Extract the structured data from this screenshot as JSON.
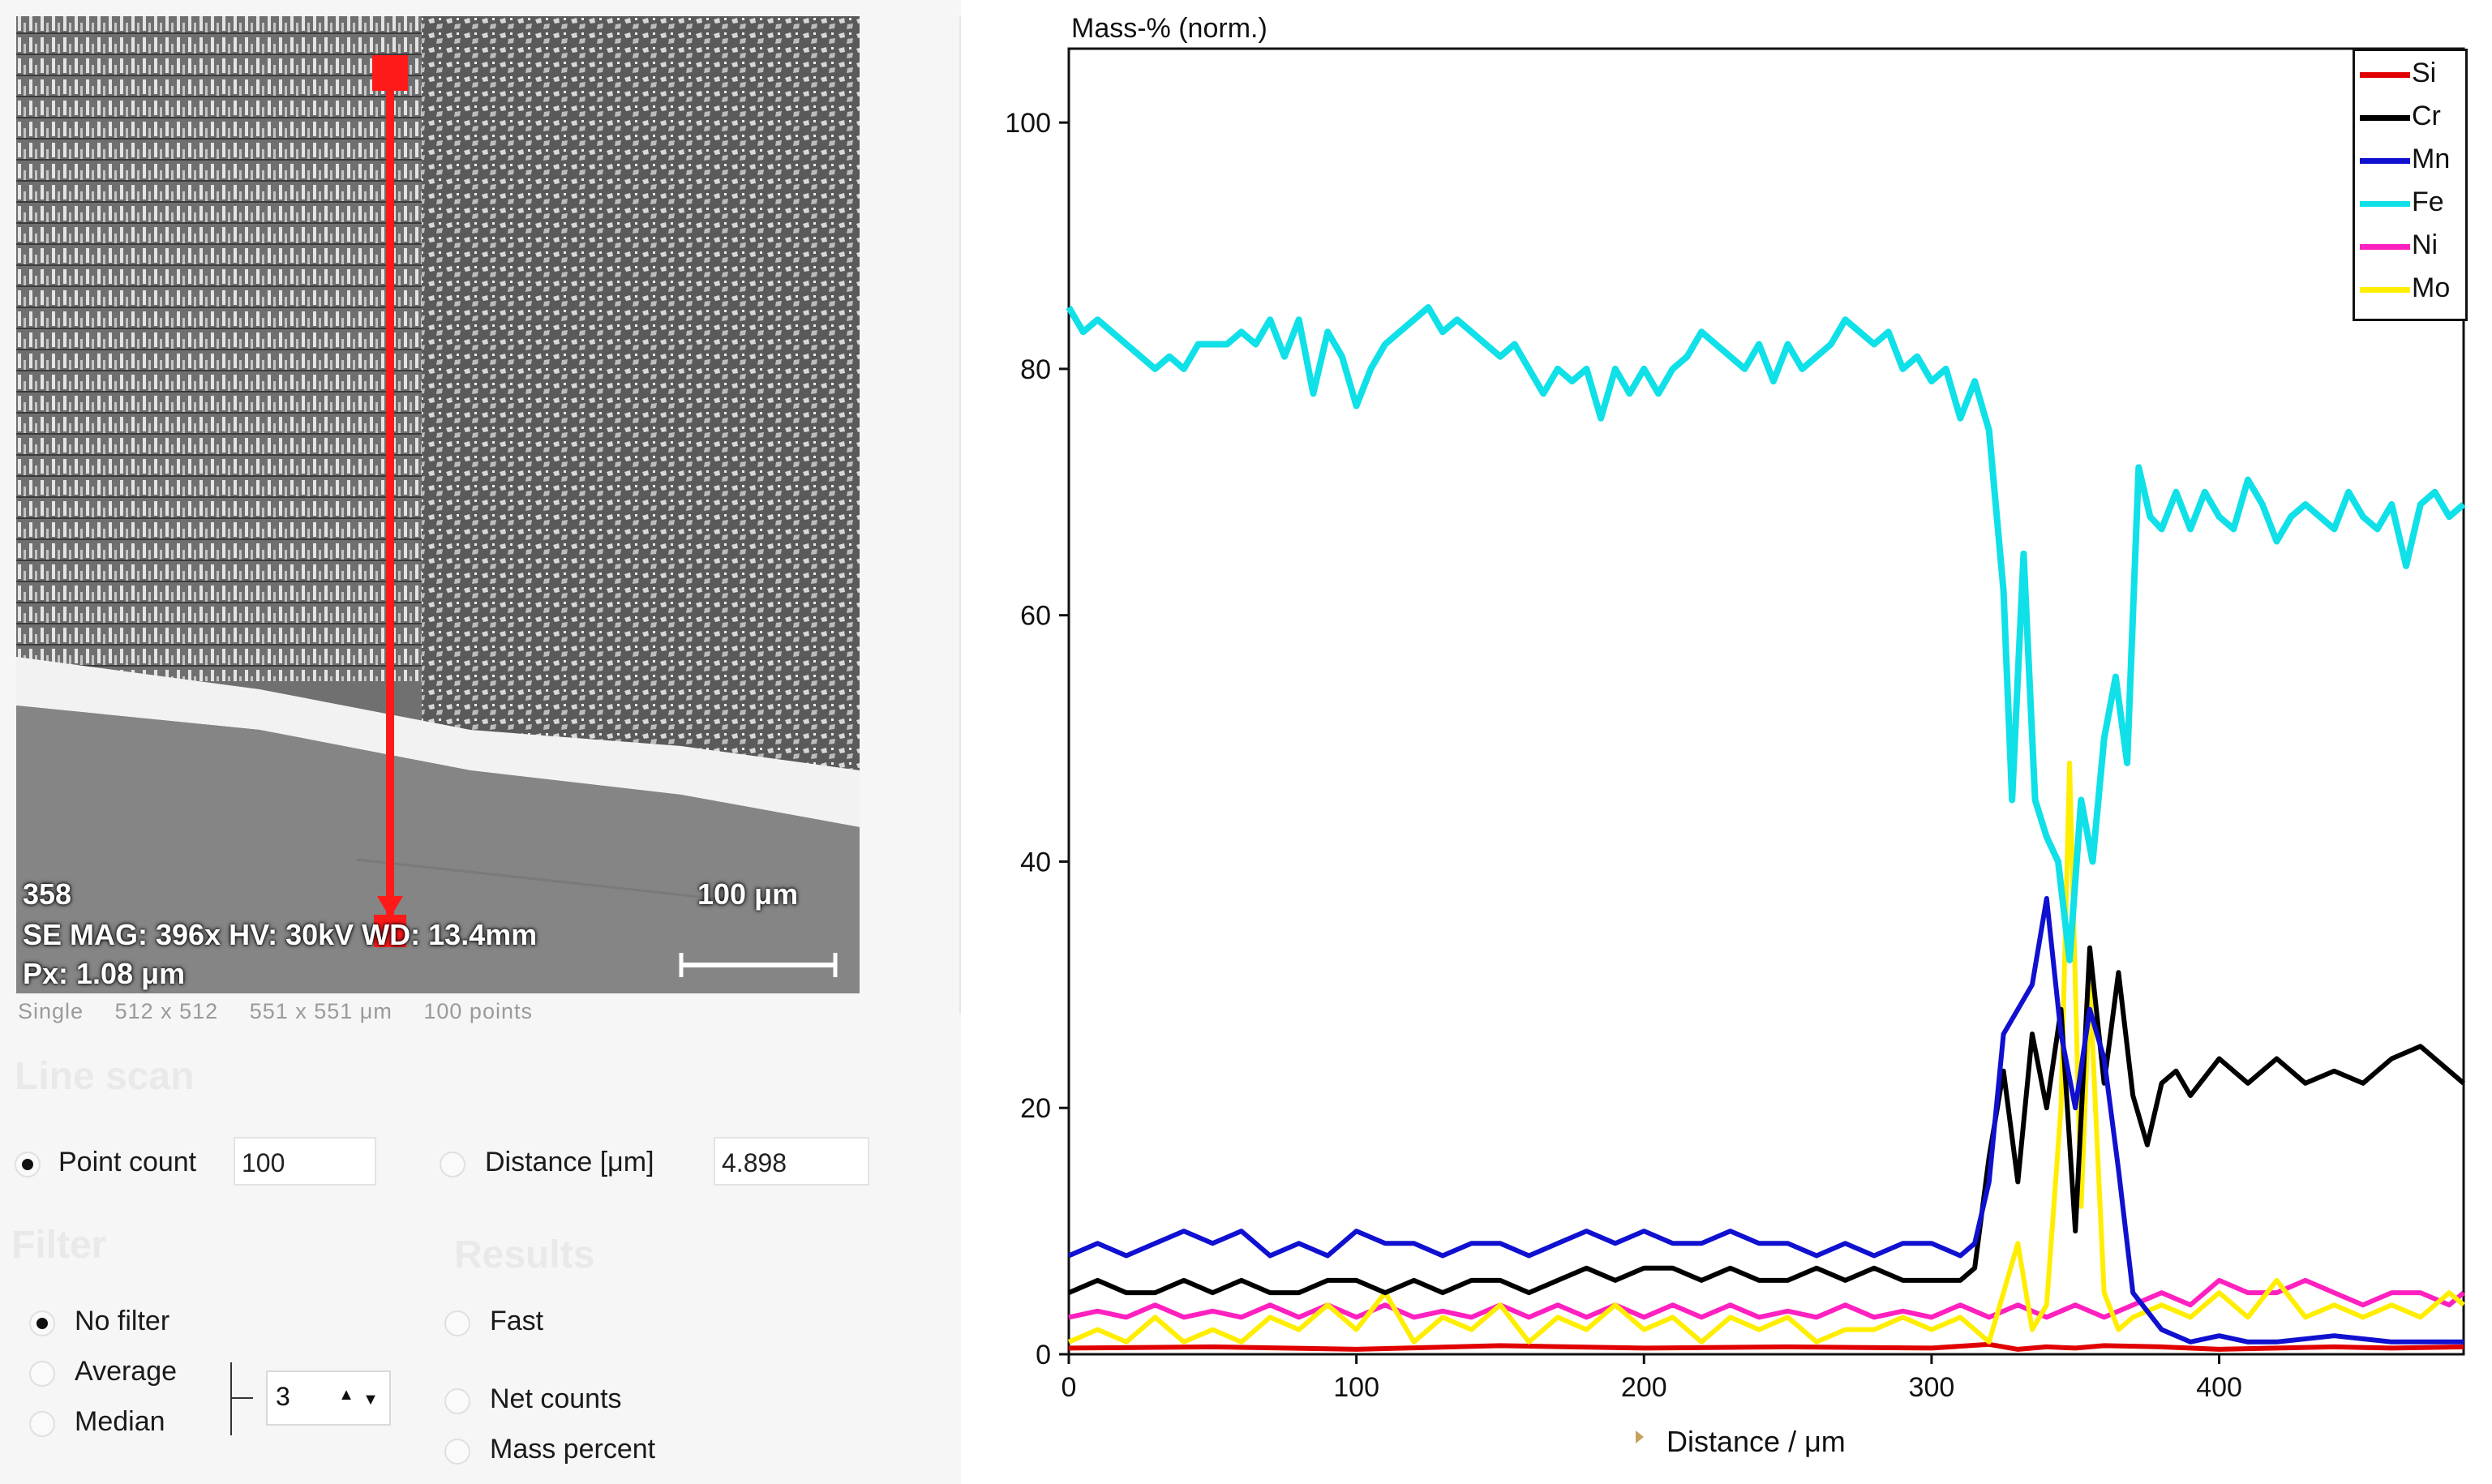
{
  "image": {
    "frame_number": "358",
    "info_line": "SE  MAG: 396x HV: 30kV WD: 13.4mm",
    "pixel_size": "Px: 1.08 μm",
    "scale_bar_label": "100 μm"
  },
  "scan_info": {
    "mode": "Single",
    "resolution": "512 x 512",
    "field_size": "551 x 551 μm",
    "points": "100 points"
  },
  "line_scan": {
    "title": "Line scan",
    "point_count_label": "Point count",
    "point_count_value": "100",
    "distance_label": "Distance [μm]",
    "distance_value": "4.898"
  },
  "filter": {
    "title": "Filter",
    "options": [
      "No filter",
      "Average",
      "Median"
    ],
    "selected": "No filter",
    "width_value": "3"
  },
  "results": {
    "title": "Results",
    "options": [
      "Fast",
      "Net counts",
      "Mass percent"
    ]
  },
  "chart_data": {
    "type": "line",
    "title": "Mass-% (norm.)",
    "xlabel": "Distance / μm",
    "ylabel": "Mass-% (norm.)",
    "xlim": [
      0,
      485
    ],
    "ylim": [
      0,
      106
    ],
    "xticks": [
      0,
      100,
      200,
      300,
      400
    ],
    "yticks": [
      0,
      20,
      40,
      60,
      80,
      100
    ],
    "legend_position": "top-right",
    "series": [
      {
        "name": "Si",
        "color": "#e00000",
        "x": [
          0,
          50,
          100,
          150,
          200,
          250,
          300,
          320,
          330,
          340,
          350,
          360,
          380,
          400,
          420,
          440,
          460,
          485
        ],
        "values": [
          0.5,
          0.6,
          0.4,
          0.7,
          0.5,
          0.6,
          0.5,
          0.8,
          0.4,
          0.6,
          0.5,
          0.7,
          0.6,
          0.4,
          0.5,
          0.6,
          0.5,
          0.6
        ]
      },
      {
        "name": "Cr",
        "color": "#000000",
        "x": [
          0,
          10,
          20,
          30,
          40,
          50,
          60,
          70,
          80,
          90,
          100,
          110,
          120,
          130,
          140,
          150,
          160,
          170,
          180,
          190,
          200,
          210,
          220,
          230,
          240,
          250,
          260,
          270,
          280,
          290,
          300,
          310,
          315,
          320,
          325,
          330,
          335,
          340,
          345,
          350,
          355,
          360,
          365,
          370,
          375,
          380,
          385,
          390,
          400,
          410,
          420,
          430,
          440,
          450,
          460,
          470,
          480,
          485
        ],
        "values": [
          5,
          6,
          5,
          5,
          6,
          5,
          6,
          5,
          5,
          6,
          6,
          5,
          6,
          5,
          6,
          6,
          5,
          6,
          7,
          6,
          7,
          7,
          6,
          7,
          6,
          6,
          7,
          6,
          7,
          6,
          6,
          6,
          7,
          16,
          23,
          14,
          26,
          20,
          28,
          10,
          33,
          22,
          31,
          21,
          17,
          22,
          23,
          21,
          24,
          22,
          24,
          22,
          23,
          22,
          24,
          25,
          23,
          22
        ]
      },
      {
        "name": "Mn",
        "color": "#1010d0",
        "x": [
          0,
          10,
          20,
          30,
          40,
          50,
          60,
          70,
          80,
          90,
          100,
          110,
          120,
          130,
          140,
          150,
          160,
          170,
          180,
          190,
          200,
          210,
          220,
          230,
          240,
          250,
          260,
          270,
          280,
          290,
          300,
          310,
          315,
          320,
          325,
          330,
          335,
          340,
          345,
          350,
          355,
          360,
          365,
          370,
          380,
          390,
          400,
          410,
          420,
          440,
          460,
          485
        ],
        "values": [
          8,
          9,
          8,
          9,
          10,
          9,
          10,
          8,
          9,
          8,
          10,
          9,
          9,
          8,
          9,
          9,
          8,
          9,
          10,
          9,
          10,
          9,
          9,
          10,
          9,
          9,
          8,
          9,
          8,
          9,
          9,
          8,
          9,
          14,
          26,
          28,
          30,
          37,
          26,
          20,
          28,
          24,
          15,
          5,
          2,
          1,
          1.5,
          1,
          1,
          1.5,
          1,
          1
        ]
      },
      {
        "name": "Fe",
        "color": "#10e0e8",
        "x": [
          0,
          5,
          10,
          15,
          20,
          25,
          30,
          35,
          40,
          45,
          50,
          55,
          60,
          65,
          70,
          75,
          80,
          85,
          90,
          95,
          100,
          105,
          110,
          115,
          120,
          125,
          130,
          135,
          140,
          145,
          150,
          155,
          160,
          165,
          170,
          175,
          180,
          185,
          190,
          195,
          200,
          205,
          210,
          215,
          220,
          225,
          230,
          235,
          240,
          245,
          250,
          255,
          260,
          265,
          270,
          275,
          280,
          285,
          290,
          295,
          300,
          305,
          310,
          315,
          320,
          325,
          328,
          332,
          336,
          340,
          344,
          348,
          352,
          356,
          360,
          364,
          368,
          372,
          376,
          380,
          385,
          390,
          395,
          400,
          405,
          410,
          415,
          420,
          425,
          430,
          435,
          440,
          445,
          450,
          455,
          460,
          465,
          470,
          475,
          480,
          485
        ],
        "values": [
          85,
          83,
          84,
          83,
          82,
          81,
          80,
          81,
          80,
          82,
          82,
          82,
          83,
          82,
          84,
          81,
          84,
          78,
          83,
          81,
          77,
          80,
          82,
          83,
          84,
          85,
          83,
          84,
          83,
          82,
          81,
          82,
          80,
          78,
          80,
          79,
          80,
          76,
          80,
          78,
          80,
          78,
          80,
          81,
          83,
          82,
          81,
          80,
          82,
          79,
          82,
          80,
          81,
          82,
          84,
          83,
          82,
          83,
          80,
          81,
          79,
          80,
          76,
          79,
          75,
          62,
          45,
          65,
          45,
          42,
          40,
          32,
          45,
          40,
          50,
          55,
          48,
          72,
          68,
          67,
          70,
          67,
          70,
          68,
          67,
          71,
          69,
          66,
          68,
          69,
          68,
          67,
          70,
          68,
          67,
          69,
          64,
          69,
          70,
          68,
          69
        ]
      },
      {
        "name": "Ni",
        "color": "#ff20c0",
        "x": [
          0,
          10,
          20,
          30,
          40,
          50,
          60,
          70,
          80,
          90,
          100,
          110,
          120,
          130,
          140,
          150,
          160,
          170,
          180,
          190,
          200,
          210,
          220,
          230,
          240,
          250,
          260,
          270,
          280,
          290,
          300,
          310,
          320,
          330,
          340,
          350,
          360,
          370,
          380,
          390,
          400,
          410,
          420,
          430,
          440,
          450,
          460,
          470,
          480,
          485
        ],
        "values": [
          3,
          3.5,
          3,
          4,
          3,
          3.5,
          3,
          4,
          3,
          4,
          3,
          4,
          3,
          3.5,
          3,
          4,
          3,
          4,
          3,
          4,
          3,
          4,
          3,
          4,
          3,
          3.5,
          3,
          4,
          3,
          3.5,
          3,
          4,
          3,
          4,
          3,
          4,
          3,
          4,
          5,
          4,
          6,
          5,
          5,
          6,
          5,
          4,
          5,
          5,
          4,
          5
        ]
      },
      {
        "name": "Mo",
        "color": "#ffee00",
        "x": [
          0,
          10,
          20,
          30,
          40,
          50,
          60,
          70,
          80,
          90,
          100,
          110,
          120,
          130,
          140,
          150,
          160,
          170,
          180,
          190,
          200,
          210,
          220,
          230,
          240,
          250,
          260,
          270,
          280,
          290,
          300,
          310,
          320,
          325,
          330,
          335,
          340,
          345,
          348,
          352,
          355,
          360,
          365,
          370,
          380,
          390,
          400,
          410,
          420,
          430,
          440,
          450,
          460,
          470,
          480,
          485
        ],
        "values": [
          1,
          2,
          1,
          3,
          1,
          2,
          1,
          3,
          2,
          4,
          2,
          5,
          1,
          3,
          2,
          4,
          1,
          3,
          2,
          4,
          2,
          3,
          1,
          3,
          2,
          3,
          1,
          2,
          2,
          3,
          2,
          3,
          1,
          5,
          9,
          2,
          4,
          20,
          48,
          12,
          30,
          5,
          2,
          3,
          4,
          3,
          5,
          3,
          6,
          3,
          4,
          3,
          4,
          3,
          5,
          4
        ]
      }
    ]
  }
}
